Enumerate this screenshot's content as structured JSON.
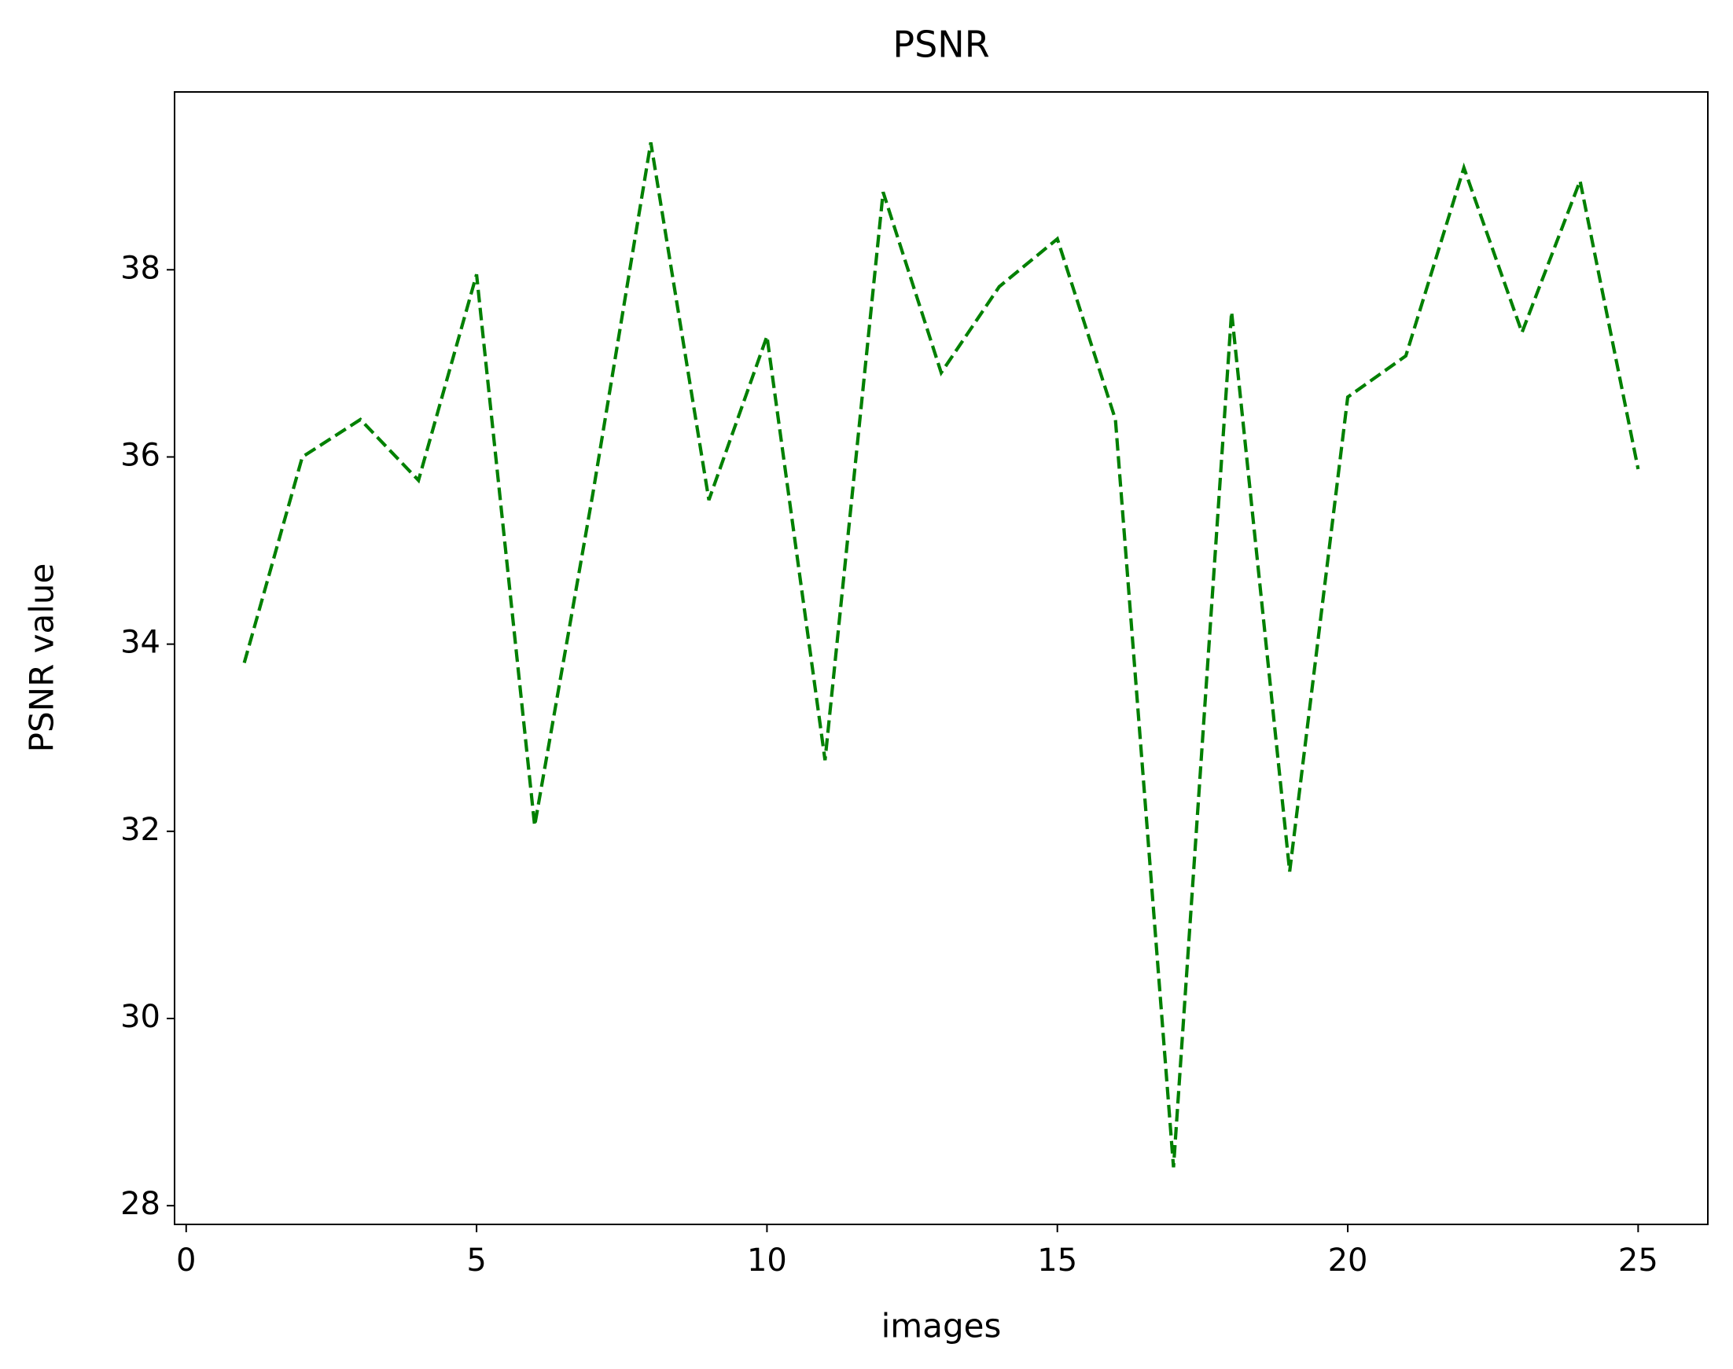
{
  "chart_data": {
    "type": "line",
    "title": "PSNR",
    "xlabel": "images",
    "ylabel": "PSNR value",
    "x": [
      1,
      2,
      3,
      4,
      5,
      6,
      7,
      8,
      9,
      10,
      11,
      12,
      13,
      14,
      15,
      16,
      17,
      18,
      19,
      20,
      21,
      22,
      23,
      24,
      25
    ],
    "values": [
      33.8,
      36.0,
      36.4,
      35.75,
      37.95,
      32.06,
      35.6,
      39.36,
      35.54,
      37.29,
      32.76,
      38.83,
      36.9,
      37.82,
      38.33,
      36.4,
      28.41,
      37.55,
      31.57,
      36.64,
      37.08,
      39.09,
      37.33,
      38.95,
      35.87
    ],
    "color": "#008000",
    "line_style": "dashed",
    "xlim": [
      -0.2,
      26.2
    ],
    "xticks": [
      0,
      5,
      10,
      15,
      20,
      25
    ],
    "ylim": [
      27.8,
      39.9
    ],
    "yticks": [
      28,
      30,
      32,
      34,
      36,
      38
    ]
  }
}
